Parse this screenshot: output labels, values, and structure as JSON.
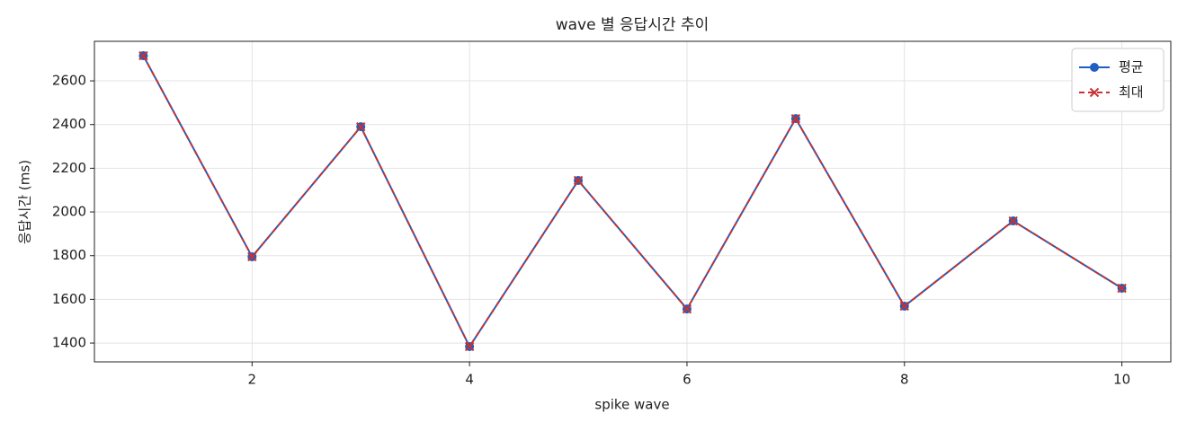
{
  "chart_data": {
    "type": "line",
    "title": "wave 별 응답시간 추이",
    "x_label": "spike wave",
    "y_label": "응답시간 (ms)",
    "x": [
      1,
      2,
      3,
      4,
      5,
      6,
      7,
      8,
      9,
      10
    ],
    "series": [
      {
        "name": "평균",
        "color": "#1f5fbf",
        "marker": "circle",
        "dash": false,
        "values": [
          2715,
          1795,
          2390,
          1384,
          2144,
          1556,
          2427,
          1569,
          1959,
          1651
        ]
      },
      {
        "name": "최대",
        "color": "#c83232",
        "marker": "x",
        "dash": true,
        "values": [
          2715,
          1795,
          2390,
          1384,
          2144,
          1556,
          2427,
          1569,
          1959,
          1651
        ]
      }
    ],
    "xlim": [
      0.55,
      10.45
    ],
    "ylim": [
      1314,
      2781
    ],
    "xticks": [
      2,
      4,
      6,
      8,
      10
    ],
    "yticks": [
      1400,
      1600,
      1800,
      2000,
      2200,
      2400,
      2600
    ],
    "grid": true,
    "legend": "upper right"
  }
}
